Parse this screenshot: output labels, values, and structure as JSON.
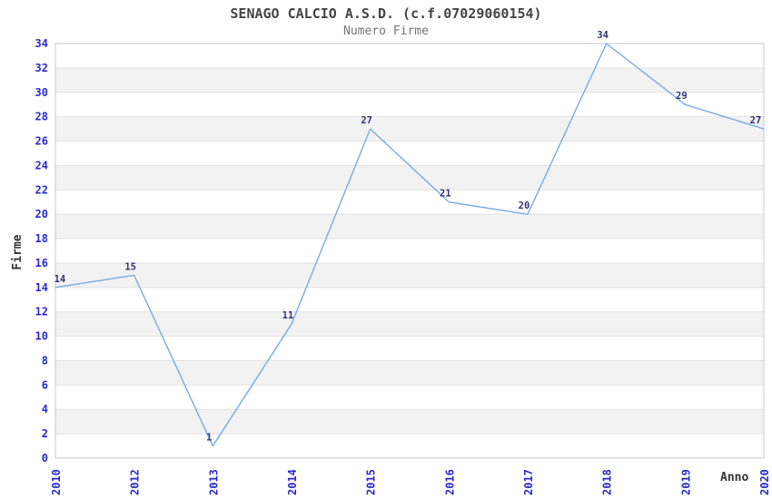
{
  "chart_data": {
    "type": "line",
    "title": "SENAGO CALCIO A.S.D. (c.f.07029060154)",
    "subtitle": "Numero Firme",
    "xlabel": "Anno",
    "ylabel": "Firme",
    "categories": [
      "2010",
      "2012",
      "2013",
      "2014",
      "2015",
      "2016",
      "2017",
      "2018",
      "2019",
      "2020"
    ],
    "values": [
      14,
      15,
      1,
      11,
      27,
      21,
      20,
      34,
      29,
      27
    ],
    "ylim": [
      0,
      34
    ],
    "ytick_step": 2,
    "xtick_rotation": 90,
    "grid": true,
    "legend": "none",
    "data_labels": true,
    "colors": {
      "line": "#77ace2",
      "tick_label": "#2929cc",
      "data_label": "#31317a",
      "band": "#ffffff",
      "band_alt": "#f2f2f2",
      "grid": "#e2e2e2",
      "border": "#c9c9c9",
      "title": "#454545",
      "subtitle": "#757575",
      "axis_title": "#333333"
    }
  }
}
